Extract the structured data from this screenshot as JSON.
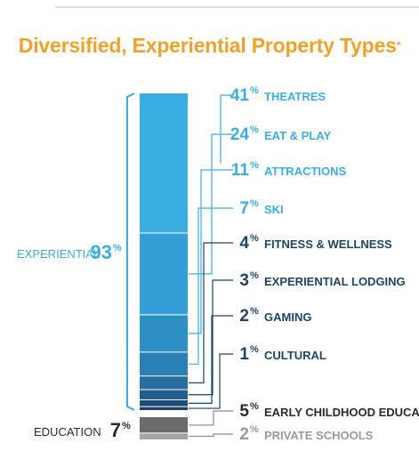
{
  "title": "Diversified, Experiential Property Types",
  "title_marker": "*",
  "chart_data": {
    "type": "stacked-bar",
    "unit": "%",
    "segments": [
      {
        "label": "THEATRES",
        "value": 41,
        "group": "experiential",
        "color": "#3aaee3"
      },
      {
        "label": "EAT & PLAY",
        "value": 24,
        "group": "experiential",
        "color": "#339fd6"
      },
      {
        "label": "ATTRACTIONS",
        "value": 11,
        "group": "experiential",
        "color": "#2d8fc4"
      },
      {
        "label": "SKI",
        "value": 7,
        "group": "experiential",
        "color": "#2a80b4"
      },
      {
        "label": "FITNESS & WELLNESS",
        "value": 4,
        "group": "experiential",
        "color": "#2670a1"
      },
      {
        "label": "EXPERIENTIAL LODGING",
        "value": 3,
        "group": "experiential",
        "color": "#225f8c"
      },
      {
        "label": "GAMING",
        "value": 2,
        "group": "experiential",
        "color": "#1e4f78"
      },
      {
        "label": "CULTURAL",
        "value": 1,
        "group": "experiential",
        "color": "#1a4060"
      },
      {
        "label": "EARLY CHILDHOOD EDUCATION",
        "value": 5,
        "group": "education",
        "color": "#6b6b6b"
      },
      {
        "label": "PRIVATE SCHOOLS",
        "value": 2,
        "group": "education",
        "color": "#a3a3a3"
      }
    ],
    "groups": [
      {
        "key": "experiential",
        "label": "EXPERIENTIAL",
        "value": 93,
        "color": "#3aaee3"
      },
      {
        "key": "education",
        "label": "EDUCATION",
        "value": 7,
        "color": "#2b2b2b"
      }
    ],
    "label_colors": {
      "experiential_light": "#3aaee3",
      "experiential_dark": "#1b4666",
      "education_dark": "#2b2b2b",
      "education_light": "#9a9a9a"
    }
  }
}
